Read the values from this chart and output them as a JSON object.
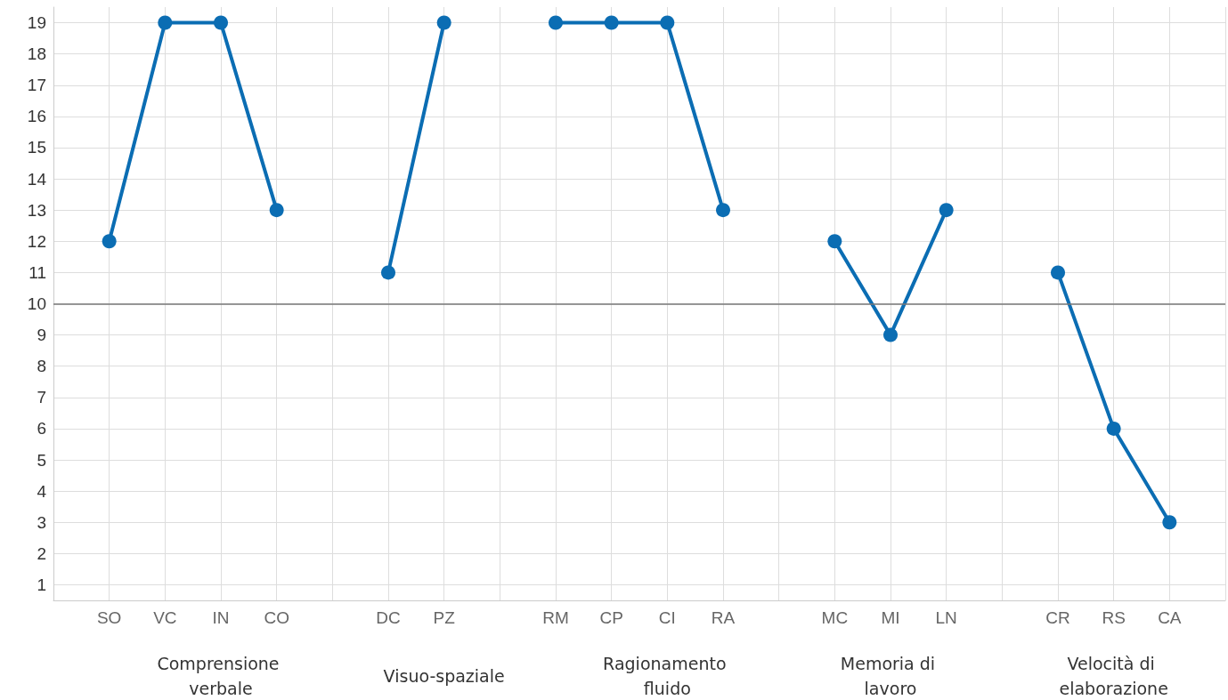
{
  "chart_data": {
    "type": "line",
    "categories": [
      null,
      "SO",
      "VC",
      "IN",
      "CO",
      null,
      "DC",
      "PZ",
      null,
      "RM",
      "CP",
      "CI",
      "RA",
      null,
      "MC",
      "MI",
      "LN",
      null,
      "CR",
      "RS",
      "CA",
      null
    ],
    "series": [
      {
        "color": "#0b6db3",
        "values": [
          null,
          12,
          19,
          19,
          13,
          null,
          11,
          19,
          null,
          19,
          19,
          19,
          13,
          null,
          12,
          9,
          13,
          null,
          11,
          6,
          3,
          null
        ]
      }
    ],
    "ylim": [
      0.5,
      19.5
    ],
    "yticks": [
      1,
      2,
      3,
      4,
      5,
      6,
      7,
      8,
      9,
      10,
      11,
      12,
      13,
      14,
      15,
      16,
      17,
      18,
      19
    ],
    "ref_lines": [
      {
        "axis": "y",
        "value": 10,
        "color": "#777777"
      }
    ],
    "annotations": [
      "Comprensione verbale",
      "Visuo-spaziale",
      "Ragionamento fluido",
      "Memoria di lavoro",
      "Velocità di elaborazione"
    ],
    "grid": true,
    "marker": "circle",
    "line_style": "solid"
  }
}
